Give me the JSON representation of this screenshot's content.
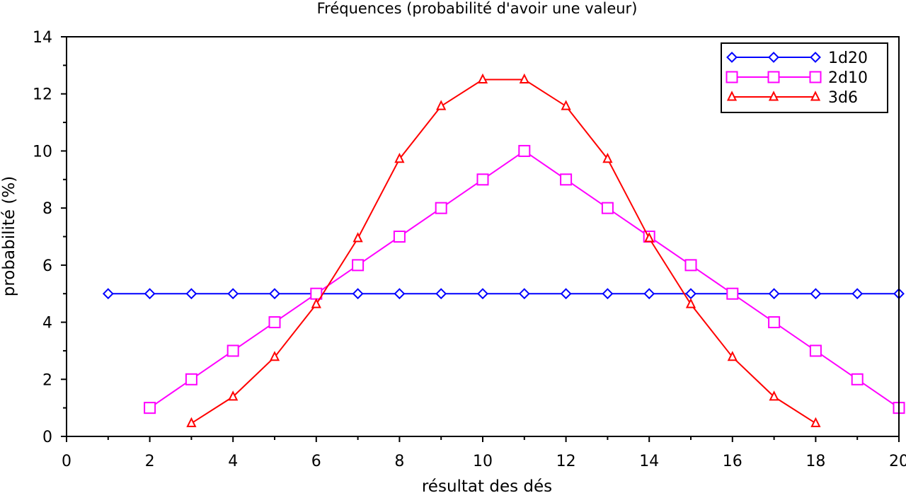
{
  "chart_data": {
    "type": "line",
    "title": "Fréquences (probabilité d'avoir une valeur)",
    "xlabel": "résultat des dés",
    "ylabel": "probabilité (%)",
    "xlim": [
      0,
      20
    ],
    "ylim": [
      0,
      14
    ],
    "x_ticks": [
      0,
      2,
      4,
      6,
      8,
      10,
      12,
      14,
      16,
      18,
      20
    ],
    "y_ticks": [
      0,
      2,
      4,
      6,
      8,
      10,
      12,
      14
    ],
    "grid": false,
    "legend_position": "top-right",
    "series": [
      {
        "name": "1d20",
        "color": "#0000ff",
        "marker": "diamond",
        "x": [
          1,
          2,
          3,
          4,
          5,
          6,
          7,
          8,
          9,
          10,
          11,
          12,
          13,
          14,
          15,
          16,
          17,
          18,
          19,
          20
        ],
        "values": [
          5,
          5,
          5,
          5,
          5,
          5,
          5,
          5,
          5,
          5,
          5,
          5,
          5,
          5,
          5,
          5,
          5,
          5,
          5,
          5
        ]
      },
      {
        "name": "2d10",
        "color": "#ff00ff",
        "marker": "square",
        "x": [
          2,
          3,
          4,
          5,
          6,
          7,
          8,
          9,
          10,
          11,
          12,
          13,
          14,
          15,
          16,
          17,
          18,
          19,
          20
        ],
        "values": [
          1,
          2,
          3,
          4,
          5,
          6,
          7,
          8,
          9,
          10,
          9,
          8,
          7,
          6,
          5,
          4,
          3,
          2,
          1
        ]
      },
      {
        "name": "3d6",
        "color": "#ff0000",
        "marker": "triangle",
        "x": [
          3,
          4,
          5,
          6,
          7,
          8,
          9,
          10,
          11,
          12,
          13,
          14,
          15,
          16,
          17,
          18
        ],
        "values": [
          0.46,
          1.39,
          2.78,
          4.63,
          6.94,
          9.72,
          11.57,
          12.5,
          12.5,
          11.57,
          9.72,
          6.94,
          4.63,
          2.78,
          1.39,
          0.46
        ]
      }
    ]
  }
}
